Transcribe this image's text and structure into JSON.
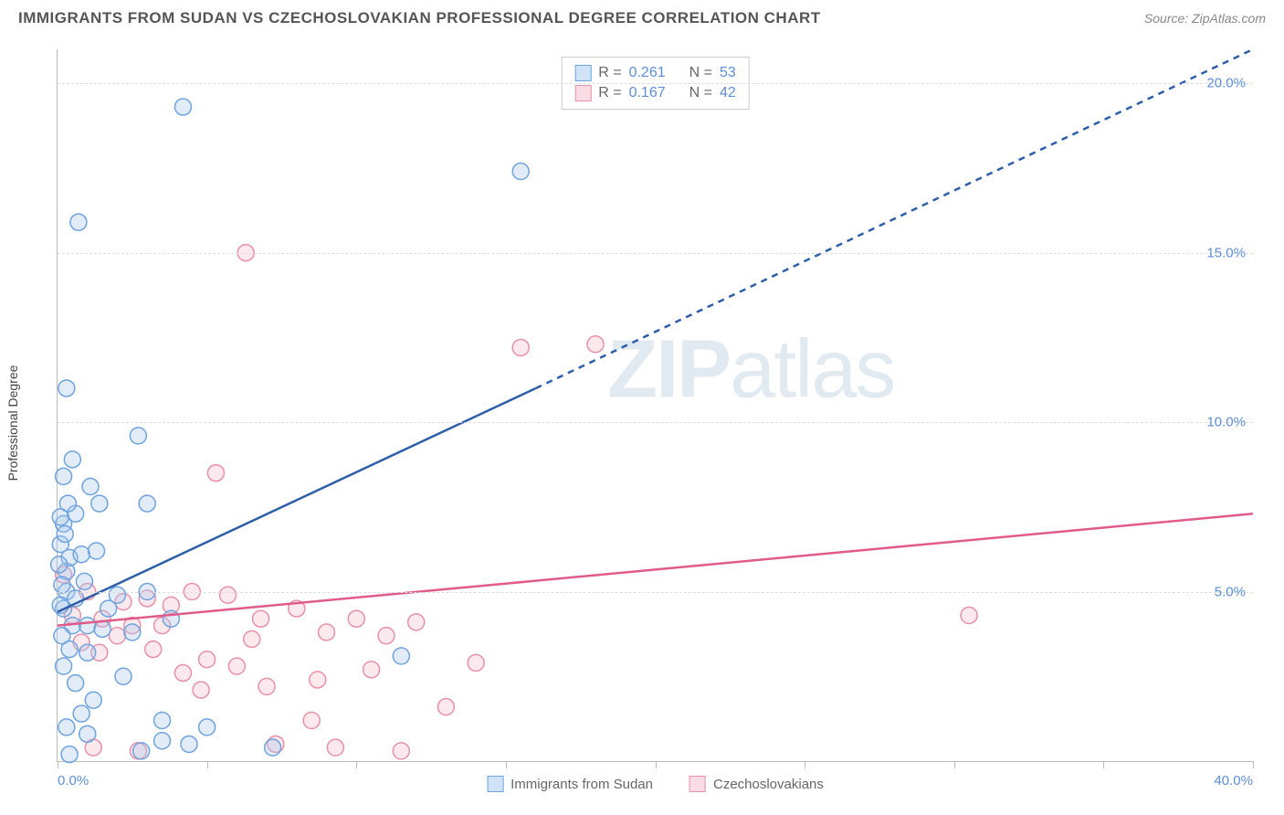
{
  "header": {
    "title": "IMMIGRANTS FROM SUDAN VS CZECHOSLOVAKIAN PROFESSIONAL DEGREE CORRELATION CHART",
    "source": "Source: ZipAtlas.com"
  },
  "chart": {
    "type": "scatter",
    "ylabel": "Professional Degree",
    "background_color": "#ffffff",
    "grid_color": "#dddddd",
    "axis_color": "#bbbbbb",
    "tick_label_color": "#5b8fd6",
    "xlim": [
      0,
      40
    ],
    "ylim": [
      0,
      21
    ],
    "ytick_values": [
      5,
      10,
      15,
      20
    ],
    "ytick_labels": [
      "5.0%",
      "10.0%",
      "15.0%",
      "20.0%"
    ],
    "xtick_values": [
      0,
      10,
      20,
      30,
      40
    ],
    "xtick_labels": [
      "0.0%",
      "",
      "",
      "",
      "40.0%"
    ],
    "xtick_minor": [
      5,
      15,
      25,
      35
    ],
    "marker_radius": 9,
    "marker_stroke_width": 1.5,
    "marker_fill_opacity": 0.35,
    "watermark_text": "ZIPatlas",
    "watermark_color": "rgba(140,170,200,0.25)"
  },
  "series": {
    "sudan": {
      "label": "Immigrants from Sudan",
      "color_stroke": "#6fa3dd",
      "color_fill": "#a9c9ec",
      "line_color": "#2d5fa8",
      "r_label": "R =",
      "r_value": "0.261",
      "n_label": "N =",
      "n_value": "53",
      "trend_solid": {
        "x1": 0,
        "y1": 4.4,
        "x2": 16,
        "y2": 11.0
      },
      "trend_dash": {
        "x1": 16,
        "y1": 11.0,
        "x2": 40,
        "y2": 21.0
      },
      "points": [
        [
          0.3,
          5.6
        ],
        [
          0.4,
          6.0
        ],
        [
          0.2,
          7.0
        ],
        [
          0.6,
          7.3
        ],
        [
          1.1,
          8.1
        ],
        [
          0.5,
          8.9
        ],
        [
          0.8,
          6.1
        ],
        [
          1.4,
          7.6
        ],
        [
          0.3,
          11.0
        ],
        [
          0.7,
          15.9
        ],
        [
          4.2,
          19.3
        ],
        [
          2.7,
          9.6
        ],
        [
          3.0,
          7.6
        ],
        [
          0.3,
          5.0
        ],
        [
          0.5,
          4.0
        ],
        [
          0.2,
          4.5
        ],
        [
          1.0,
          4.0
        ],
        [
          1.0,
          3.2
        ],
        [
          1.5,
          3.9
        ],
        [
          0.2,
          2.8
        ],
        [
          0.6,
          2.3
        ],
        [
          1.2,
          1.8
        ],
        [
          0.8,
          1.4
        ],
        [
          0.3,
          1.0
        ],
        [
          1.0,
          0.8
        ],
        [
          2.0,
          4.9
        ],
        [
          2.5,
          3.8
        ],
        [
          3.0,
          5.0
        ],
        [
          3.5,
          1.2
        ],
        [
          3.8,
          4.2
        ],
        [
          4.4,
          0.5
        ],
        [
          5.0,
          1.0
        ],
        [
          11.5,
          3.1
        ],
        [
          15.5,
          17.4
        ],
        [
          7.2,
          0.4
        ],
        [
          0.1,
          6.4
        ],
        [
          0.15,
          5.2
        ],
        [
          0.25,
          6.7
        ],
        [
          0.35,
          7.6
        ],
        [
          0.1,
          4.6
        ],
        [
          0.15,
          3.7
        ],
        [
          0.4,
          3.3
        ],
        [
          0.6,
          4.8
        ],
        [
          1.3,
          6.2
        ],
        [
          0.9,
          5.3
        ],
        [
          2.2,
          2.5
        ],
        [
          1.7,
          4.5
        ],
        [
          0.4,
          0.2
        ],
        [
          2.8,
          0.3
        ],
        [
          0.05,
          5.8
        ],
        [
          0.1,
          7.2
        ],
        [
          0.2,
          8.4
        ],
        [
          3.5,
          0.6
        ]
      ]
    },
    "czech": {
      "label": "Czechoslovakians",
      "color_stroke": "#e890a8",
      "color_fill": "#f5c0cf",
      "line_color": "#e05a8a",
      "r_label": "R =",
      "r_value": "0.167",
      "n_label": "N =",
      "n_value": "42",
      "trend_solid": {
        "x1": 0,
        "y1": 4.0,
        "x2": 40,
        "y2": 7.3
      },
      "points": [
        [
          0.2,
          5.5
        ],
        [
          1.0,
          5.0
        ],
        [
          1.5,
          4.2
        ],
        [
          2.0,
          3.7
        ],
        [
          2.5,
          4.0
        ],
        [
          3.0,
          4.8
        ],
        [
          3.5,
          4.0
        ],
        [
          4.2,
          2.6
        ],
        [
          4.5,
          5.0
        ],
        [
          5.0,
          3.0
        ],
        [
          5.3,
          8.5
        ],
        [
          5.7,
          4.9
        ],
        [
          6.0,
          2.8
        ],
        [
          6.3,
          15.0
        ],
        [
          6.5,
          3.6
        ],
        [
          7.0,
          2.2
        ],
        [
          7.3,
          0.5
        ],
        [
          8.0,
          4.5
        ],
        [
          8.5,
          1.2
        ],
        [
          9.0,
          3.8
        ],
        [
          9.3,
          0.4
        ],
        [
          10.0,
          4.2
        ],
        [
          10.5,
          2.7
        ],
        [
          11.5,
          0.3
        ],
        [
          12.0,
          4.1
        ],
        [
          13.0,
          1.6
        ],
        [
          14.0,
          2.9
        ],
        [
          15.5,
          12.2
        ],
        [
          18.0,
          12.3
        ],
        [
          30.5,
          4.3
        ],
        [
          1.2,
          0.4
        ],
        [
          2.7,
          0.3
        ],
        [
          0.5,
          4.3
        ],
        [
          0.8,
          3.5
        ],
        [
          1.4,
          3.2
        ],
        [
          2.2,
          4.7
        ],
        [
          3.2,
          3.3
        ],
        [
          3.8,
          4.6
        ],
        [
          4.8,
          2.1
        ],
        [
          6.8,
          4.2
        ],
        [
          8.7,
          2.4
        ],
        [
          11.0,
          3.7
        ]
      ]
    }
  },
  "legend": {
    "swatch_border_sudan": "#6fa3dd",
    "swatch_fill_sudan": "#cfe2f6",
    "swatch_border_czech": "#e890a8",
    "swatch_fill_czech": "#fadce5"
  }
}
